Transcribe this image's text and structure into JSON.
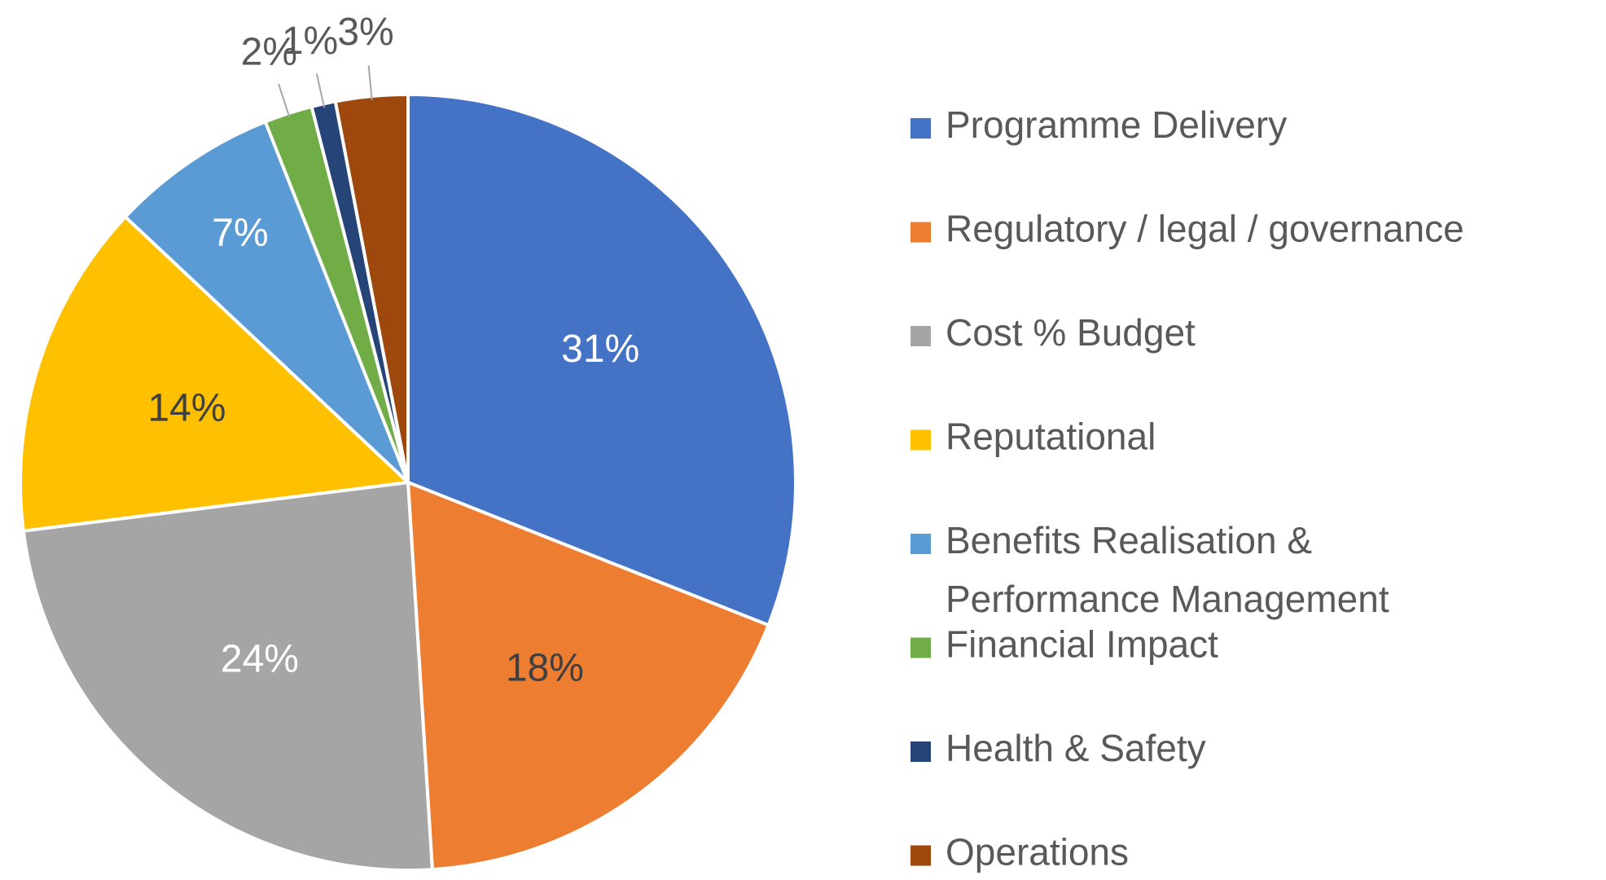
{
  "chart_data": {
    "type": "pie",
    "categories": [
      "Programme Delivery",
      "Regulatory / legal / governance",
      "Cost % Budget",
      "Reputational",
      "Benefits Realisation & Performance Management",
      "Financial Impact",
      "Health & Safety",
      "Operations"
    ],
    "values": [
      31,
      18,
      24,
      14,
      7,
      2,
      1,
      3
    ],
    "value_labels": [
      "31%",
      "18%",
      "24%",
      "14%",
      "7%",
      "2%",
      "1%",
      "3%"
    ],
    "colors": [
      "#4472c4",
      "#ed7d31",
      "#a5a5a5",
      "#ffc000",
      "#5b9bd5",
      "#70ad47",
      "#264478",
      "#9e480e"
    ],
    "label_colors": [
      "#ffffff",
      "#404040",
      "#ffffff",
      "#404040",
      "#ffffff",
      "#595959",
      "#595959",
      "#595959"
    ],
    "legend": "right"
  }
}
